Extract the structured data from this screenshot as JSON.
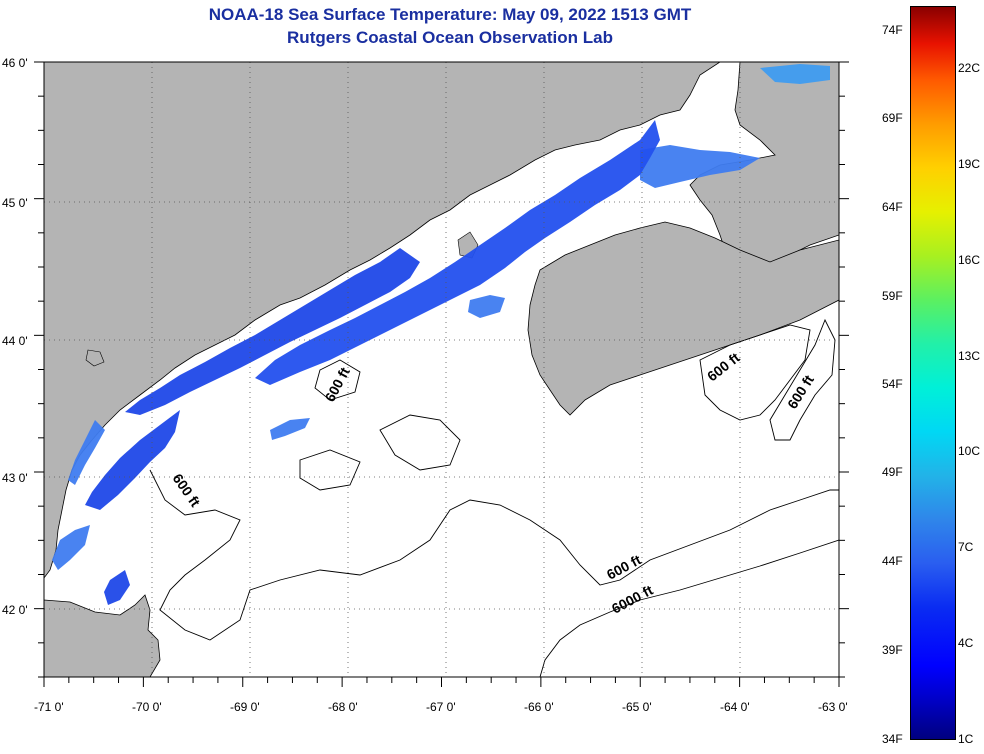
{
  "header": {
    "title": "NOAA-18 Sea Surface Temperature:  May 09, 2022 1513 GMT",
    "subtitle": "Rutgers Coastal Ocean Observation Lab"
  },
  "axes": {
    "latitude_ticks": [
      "46 0'",
      "45 0'",
      "44 0'",
      "43 0'",
      "42 0'"
    ],
    "longitude_ticks": [
      "-71 0'",
      "-70 0'",
      "-69 0'",
      "-68 0'",
      "-67 0'",
      "-66 0'",
      "-65 0'",
      "-64 0'",
      "-63 0'"
    ],
    "lat_range": [
      41.5,
      46.0
    ],
    "lon_range": [
      -71.0,
      -63.0
    ]
  },
  "contours": {
    "labels": [
      "600 ft",
      "600 ft",
      "600 ft",
      "600 ft",
      "600 ft",
      "6000 ft"
    ]
  },
  "colorbar": {
    "fahrenheit": [
      "74F",
      "69F",
      "64F",
      "59F",
      "54F",
      "49F",
      "44F",
      "39F",
      "34F"
    ],
    "celsius": [
      "22C",
      "19C",
      "16C",
      "13C",
      "10C",
      "7C",
      "4C",
      "1C"
    ]
  },
  "colors": {
    "land": "#b4b4b4",
    "ocean": "#ffffff",
    "title": "#1a2fa0",
    "sst_cold": "#1f48e8",
    "sst_cool": "#3f7cf0"
  }
}
